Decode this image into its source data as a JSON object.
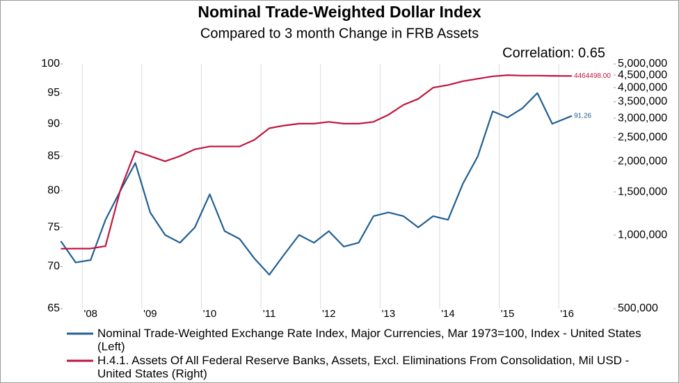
{
  "chart_data": {
    "type": "line",
    "title": "Nominal Trade-Weighted Dollar Index",
    "subtitle": "Compared to 3 month Change in FRB Assets",
    "annotation": "Correlation: 0.65",
    "x": [
      2007.5,
      2007.75,
      2008.0,
      2008.25,
      2008.5,
      2008.75,
      2009.0,
      2009.25,
      2009.5,
      2009.75,
      2010.0,
      2010.25,
      2010.5,
      2010.75,
      2011.0,
      2011.25,
      2011.5,
      2011.75,
      2012.0,
      2012.25,
      2012.5,
      2012.75,
      2013.0,
      2013.25,
      2013.5,
      2013.75,
      2014.0,
      2014.25,
      2014.5,
      2014.75,
      2015.0,
      2015.25,
      2015.5,
      2015.75,
      2016.08
    ],
    "xlim": [
      2007.53,
      2016.78
    ],
    "xticks": [
      {
        "value": 2008,
        "label": "'08"
      },
      {
        "value": 2009,
        "label": "'09"
      },
      {
        "value": 2010,
        "label": "'10"
      },
      {
        "value": 2011,
        "label": "'11"
      },
      {
        "value": 2012,
        "label": "'12"
      },
      {
        "value": 2013,
        "label": "'13"
      },
      {
        "value": 2014,
        "label": "'14"
      },
      {
        "value": 2015,
        "label": "'15"
      },
      {
        "value": 2016,
        "label": "'16"
      }
    ],
    "ylim": [
      65,
      100
    ],
    "yticks": [
      65,
      70,
      75,
      80,
      85,
      90,
      95,
      100
    ],
    "ylog": true,
    "y2lim": [
      500000,
      5000000
    ],
    "y2ticks": [
      {
        "value": 500000,
        "label": "500,000"
      },
      {
        "value": 1000000,
        "label": "1,000,000"
      },
      {
        "value": 1500000,
        "label": "1,500,000"
      },
      {
        "value": 2000000,
        "label": "2,000,000"
      },
      {
        "value": 2500000,
        "label": "2,500,000"
      },
      {
        "value": 3000000,
        "label": "3,000,000"
      },
      {
        "value": 3500000,
        "label": "3,500,000"
      },
      {
        "value": 4000000,
        "label": "4,000,000"
      },
      {
        "value": 4500000,
        "label": "4,500,000"
      },
      {
        "value": 5000000,
        "label": "5,000,000"
      }
    ],
    "y2log": true,
    "grid": true,
    "series": [
      {
        "name": "Nominal Trade-Weighted Exchange Rate Index, Major Currencies, Mar 1973=100, Index - United States  (Left)",
        "color": "#1f5f94",
        "axis": "y",
        "values": [
          73.2,
          70.5,
          70.8,
          76,
          80,
          84,
          77,
          74,
          73,
          75,
          79.5,
          74.5,
          73.5,
          71,
          69,
          71.5,
          74,
          73,
          74.5,
          72.5,
          73,
          76.5,
          77,
          76.5,
          75,
          76.5,
          76,
          81,
          85,
          92,
          91,
          92.5,
          95,
          90,
          91.26
        ],
        "end_label": "91.26"
      },
      {
        "name": "H.4.1. Assets Of All Federal Reserve Banks, Assets, Excl. Eliminations From Consolidation, Mil USD - United States  (Right)",
        "color": "#c0143c",
        "axis": "y2",
        "values": [
          879000,
          880000,
          880000,
          900000,
          1530000,
          2200000,
          2100000,
          2000000,
          2100000,
          2240000,
          2300000,
          2300000,
          2300000,
          2450000,
          2730000,
          2800000,
          2850000,
          2850000,
          2900000,
          2850000,
          2850000,
          2900000,
          3100000,
          3400000,
          3600000,
          4000000,
          4100000,
          4250000,
          4350000,
          4450000,
          4500000,
          4480000,
          4480000,
          4470000,
          4464498
        ],
        "end_label": "4464498.00"
      }
    ]
  }
}
